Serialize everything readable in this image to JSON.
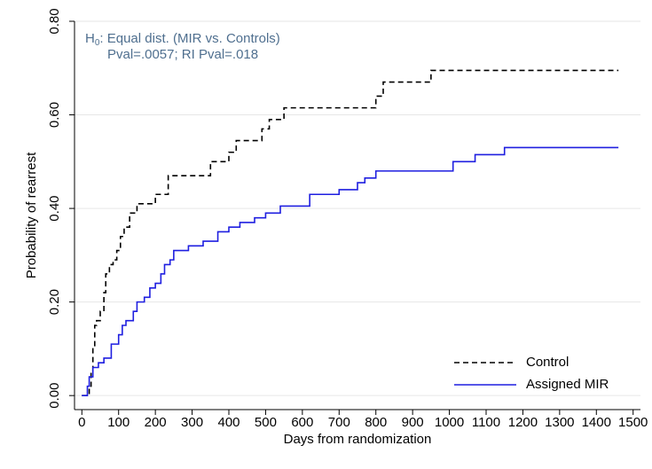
{
  "chart_data": {
    "type": "line",
    "step": "post",
    "y_label": "Probability of rearrest",
    "x_label": "Days from randomization",
    "annotation": {
      "prefix": "H",
      "subscript": "0",
      "text": ": Equal dist. (MIR vs. Controls)",
      "line2": "Pval=.0057; RI Pval=.018"
    },
    "xlim": [
      -20,
      1520
    ],
    "ylim": [
      -0.03,
      0.8
    ],
    "xticks": [
      0,
      100,
      200,
      300,
      400,
      500,
      600,
      700,
      800,
      900,
      1000,
      1100,
      1200,
      1300,
      1400,
      1500
    ],
    "yticks": [
      {
        "value": 0,
        "label": "0.00"
      },
      {
        "value": 0.2,
        "label": "0.20"
      },
      {
        "value": 0.4,
        "label": "0.40"
      },
      {
        "value": 0.6,
        "label": "0.60"
      },
      {
        "value": 0.8,
        "label": "0.80"
      }
    ],
    "grid": true,
    "legend": "lower right",
    "series": [
      {
        "name": "Control",
        "color": "#000000",
        "dash": true,
        "x": [
          0,
          20,
          25,
          30,
          35,
          40,
          50,
          60,
          65,
          75,
          85,
          95,
          105,
          115,
          130,
          150,
          200,
          235,
          350,
          400,
          420,
          490,
          510,
          550,
          800,
          820,
          950,
          1460
        ],
        "values": [
          0,
          0.02,
          0.05,
          0.1,
          0.15,
          0.16,
          0.18,
          0.22,
          0.26,
          0.28,
          0.29,
          0.31,
          0.34,
          0.36,
          0.39,
          0.41,
          0.43,
          0.47,
          0.5,
          0.52,
          0.545,
          0.57,
          0.59,
          0.615,
          0.64,
          0.67,
          0.695,
          0.695
        ]
      },
      {
        "name": "Assigned MIR",
        "color": "#1f1fe0",
        "dash": false,
        "x": [
          0,
          15,
          20,
          30,
          45,
          60,
          80,
          100,
          110,
          120,
          140,
          150,
          170,
          185,
          200,
          215,
          225,
          240,
          250,
          290,
          330,
          370,
          400,
          430,
          470,
          500,
          540,
          620,
          700,
          750,
          770,
          800,
          1010,
          1070,
          1150,
          1460
        ],
        "values": [
          0,
          0.02,
          0.04,
          0.06,
          0.07,
          0.08,
          0.11,
          0.13,
          0.15,
          0.16,
          0.18,
          0.2,
          0.21,
          0.23,
          0.24,
          0.26,
          0.28,
          0.29,
          0.31,
          0.32,
          0.33,
          0.35,
          0.36,
          0.37,
          0.38,
          0.39,
          0.405,
          0.43,
          0.44,
          0.455,
          0.465,
          0.48,
          0.5,
          0.515,
          0.53,
          0.53
        ]
      }
    ]
  }
}
